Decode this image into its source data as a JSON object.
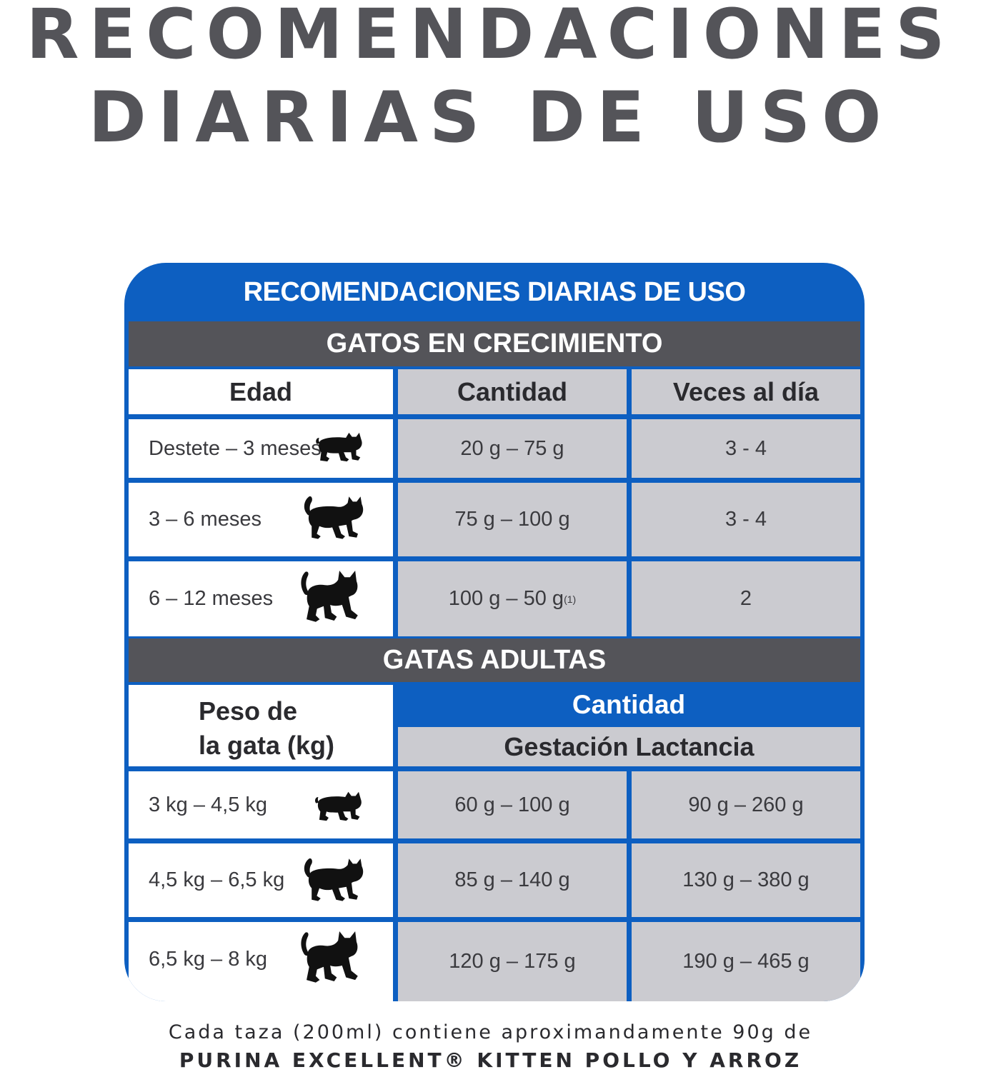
{
  "headline": {
    "line1": "RECOMENDACIONES",
    "line2": "DIARIAS DE USO"
  },
  "table": {
    "title": "RECOMENDACIONES DIARIAS DE USO",
    "colors": {
      "blue": "#0d5fc1",
      "section_gray": "#545459",
      "cell_gray": "#cbcbd0"
    },
    "growing": {
      "section": "GATOS EN CRECIMIENTO",
      "headers": [
        "Edad",
        "Cantidad",
        "Veces al día"
      ],
      "rows": [
        {
          "age": "Destete – 3 meses",
          "amount": "20 g – 75 g",
          "times": "3 - 4",
          "icon": "kitten-icon"
        },
        {
          "age": "3 – 6 meses",
          "amount": "75 g – 100 g",
          "times": "3 - 4",
          "icon": "cat-walking-icon"
        },
        {
          "age": "6 – 12 meses",
          "amount": "100 g – 50 g",
          "amount_note": "(1)",
          "times": "2",
          "icon": "cat-sitting-icon"
        }
      ]
    },
    "adult": {
      "section": "GATAS ADULTAS",
      "weight_header_line1": "Peso de",
      "weight_header_line2": "la gata (kg)",
      "amount_header": "Cantidad",
      "sub_header": "Gestación Lactancia",
      "rows": [
        {
          "weight": "3 kg – 4,5 kg",
          "gestation": "60 g – 100 g",
          "lactation": "90 g – 260 g",
          "icon": "kitten-icon"
        },
        {
          "weight": "4,5 kg – 6,5 kg",
          "gestation": "85 g – 140 g",
          "lactation": "130 g – 380 g",
          "icon": "cat-walking-icon"
        },
        {
          "weight": "6,5 kg – 8 kg",
          "gestation": "120 g – 175 g",
          "lactation": "190 g – 465 g",
          "icon": "cat-sitting-icon"
        }
      ]
    }
  },
  "footer": {
    "line1": "Cada taza (200ml) contiene aproximandamente 90g de",
    "line2": "PURINA EXCELLENT® KITTEN POLLO Y ARROZ"
  }
}
